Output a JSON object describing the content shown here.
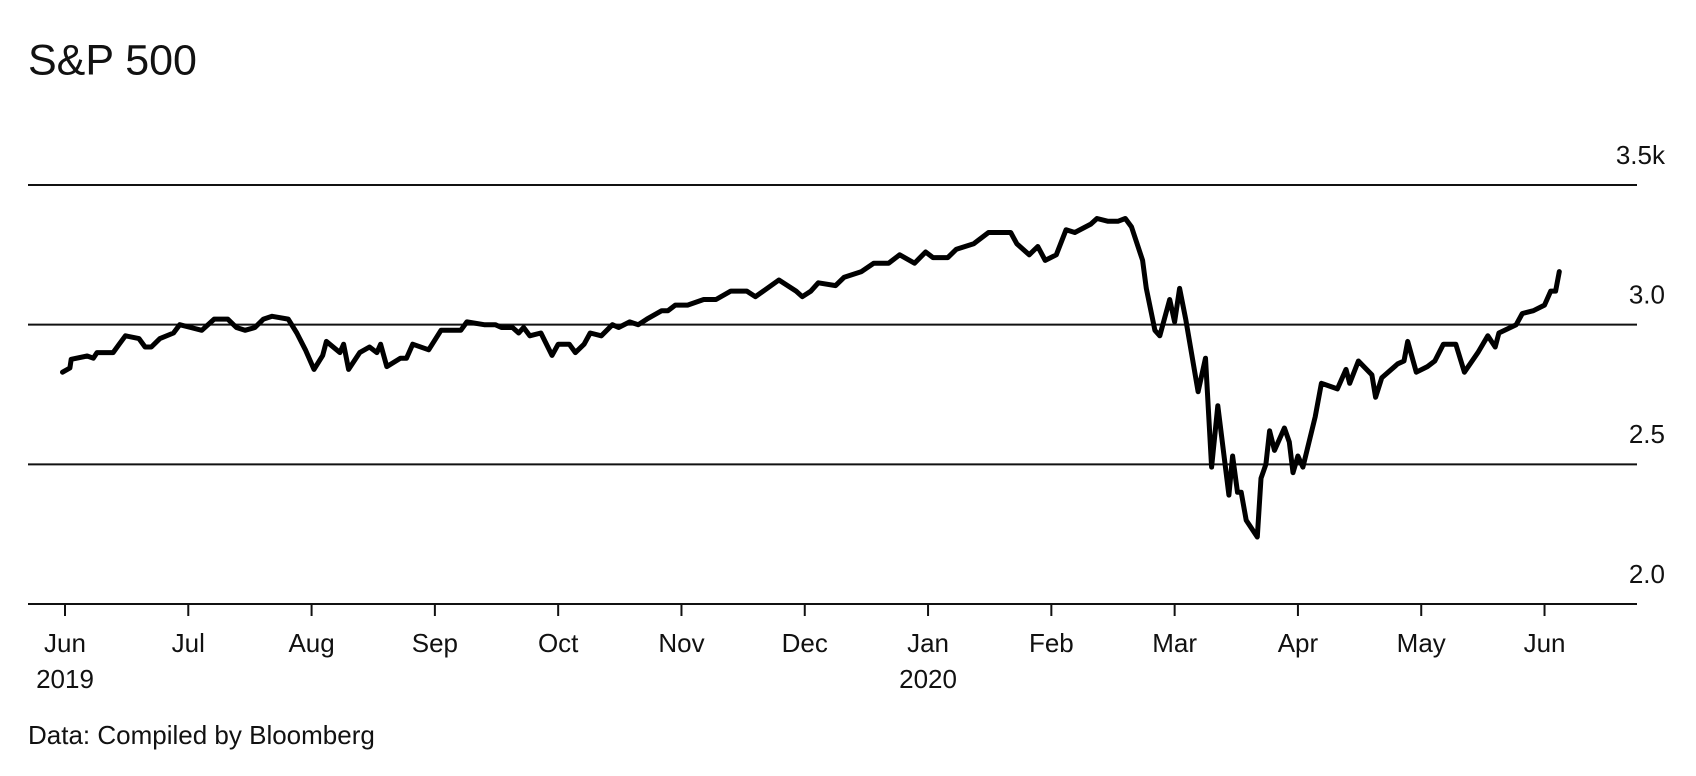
{
  "chart_data": {
    "type": "line",
    "title": "S&P 500",
    "source": "Data: Compiled by Bloomberg",
    "color": "#000000",
    "grid": true,
    "xlim": [
      -0.3,
      12.75
    ],
    "xticks": [
      {
        "value": 0,
        "label": "Jun"
      },
      {
        "value": 1,
        "label": "Jul"
      },
      {
        "value": 2,
        "label": "Aug"
      },
      {
        "value": 3,
        "label": "Sep"
      },
      {
        "value": 4,
        "label": "Oct"
      },
      {
        "value": 5,
        "label": "Nov"
      },
      {
        "value": 6,
        "label": "Dec"
      },
      {
        "value": 7,
        "label": "Jan"
      },
      {
        "value": 8,
        "label": "Feb"
      },
      {
        "value": 9,
        "label": "Mar"
      },
      {
        "value": 10,
        "label": "Apr"
      },
      {
        "value": 11,
        "label": "May"
      },
      {
        "value": 12,
        "label": "Jun"
      }
    ],
    "year_labels": [
      {
        "value": 0,
        "label": "2019"
      },
      {
        "value": 7,
        "label": "2020"
      }
    ],
    "ylim": [
      2,
      3.5
    ],
    "yticks": [
      {
        "value": 3.5,
        "label": "3.5k"
      },
      {
        "value": 3,
        "label": "3.0"
      },
      2.5,
      {
        "value": 2,
        "label": "2.0"
      }
    ],
    "x": [
      -0.02,
      0.04,
      0.05,
      0.18,
      0.23,
      0.26,
      0.39,
      0.44,
      0.49,
      0.6,
      0.65,
      0.7,
      0.77,
      0.88,
      0.93,
      1.02,
      1.11,
      1.21,
      1.32,
      1.39,
      1.46,
      1.54,
      1.61,
      1.68,
      1.81,
      1.88,
      1.95,
      2.02,
      2.09,
      2.12,
      2.23,
      2.26,
      2.3,
      2.39,
      2.47,
      2.53,
      2.56,
      2.61,
      2.72,
      2.77,
      2.82,
      2.95,
      3.05,
      3.21,
      3.26,
      3.4,
      3.49,
      3.54,
      3.63,
      3.68,
      3.72,
      3.77,
      3.86,
      3.95,
      4.0,
      4.09,
      4.14,
      4.21,
      4.26,
      4.35,
      4.44,
      4.49,
      4.58,
      4.65,
      4.72,
      4.84,
      4.89,
      4.95,
      5.05,
      5.18,
      5.28,
      5.4,
      5.53,
      5.6,
      5.79,
      5.93,
      5.98,
      6.05,
      6.11,
      6.25,
      6.32,
      6.46,
      6.56,
      6.68,
      6.77,
      6.89,
      6.98,
      7.04,
      7.16,
      7.23,
      7.37,
      7.49,
      7.67,
      7.72,
      7.82,
      7.89,
      7.95,
      8.04,
      8.12,
      8.19,
      8.32,
      8.37,
      8.46,
      8.54,
      8.6,
      8.65,
      8.74,
      8.77,
      8.84,
      8.88,
      8.96,
      9.0,
      9.04,
      9.09,
      9.19,
      9.25,
      9.3,
      9.35,
      9.44,
      9.47,
      9.51,
      9.54,
      9.58,
      9.67,
      9.7,
      9.74,
      9.77,
      9.81,
      9.89,
      9.93,
      9.96,
      10.0,
      10.04,
      10.14,
      10.19,
      10.32,
      10.39,
      10.42,
      10.49,
      10.6,
      10.63,
      10.68,
      10.81,
      10.86,
      10.89,
      10.96,
      11.05,
      11.11,
      11.18,
      11.28,
      11.35,
      11.46,
      11.54,
      11.6,
      11.63,
      11.77,
      11.82,
      11.91,
      12.0,
      12.05,
      12.09,
      12.12
    ],
    "values": [
      2.83,
      2.845,
      2.876,
      2.888,
      2.88,
      2.9,
      2.9,
      2.93,
      2.96,
      2.95,
      2.92,
      2.92,
      2.95,
      2.97,
      3.0,
      2.99,
      2.98,
      3.02,
      3.02,
      2.99,
      2.98,
      2.99,
      3.02,
      3.03,
      3.02,
      2.97,
      2.91,
      2.84,
      2.89,
      2.94,
      2.9,
      2.93,
      2.84,
      2.9,
      2.92,
      2.9,
      2.93,
      2.85,
      2.88,
      2.88,
      2.93,
      2.91,
      2.98,
      2.98,
      3.01,
      3.0,
      3.0,
      2.99,
      2.99,
      2.97,
      2.99,
      2.96,
      2.97,
      2.89,
      2.93,
      2.93,
      2.9,
      2.93,
      2.97,
      2.96,
      3.0,
      2.99,
      3.01,
      3.0,
      3.02,
      3.05,
      3.05,
      3.07,
      3.07,
      3.09,
      3.09,
      3.12,
      3.12,
      3.1,
      3.16,
      3.12,
      3.1,
      3.12,
      3.15,
      3.14,
      3.17,
      3.19,
      3.22,
      3.22,
      3.25,
      3.22,
      3.26,
      3.24,
      3.24,
      3.27,
      3.29,
      3.33,
      3.33,
      3.29,
      3.25,
      3.28,
      3.23,
      3.25,
      3.34,
      3.33,
      3.36,
      3.38,
      3.37,
      3.37,
      3.38,
      3.35,
      3.23,
      3.13,
      2.98,
      2.96,
      3.09,
      3.01,
      3.13,
      3.02,
      2.76,
      2.88,
      2.49,
      2.71,
      2.39,
      2.53,
      2.4,
      2.4,
      2.3,
      2.24,
      2.45,
      2.5,
      2.62,
      2.55,
      2.63,
      2.58,
      2.47,
      2.53,
      2.49,
      2.67,
      2.79,
      2.77,
      2.84,
      2.79,
      2.87,
      2.82,
      2.74,
      2.81,
      2.86,
      2.87,
      2.94,
      2.83,
      2.85,
      2.87,
      2.93,
      2.93,
      2.83,
      2.9,
      2.96,
      2.92,
      2.97,
      3.0,
      3.04,
      3.05,
      3.07,
      3.12,
      3.12,
      3.19
    ]
  }
}
